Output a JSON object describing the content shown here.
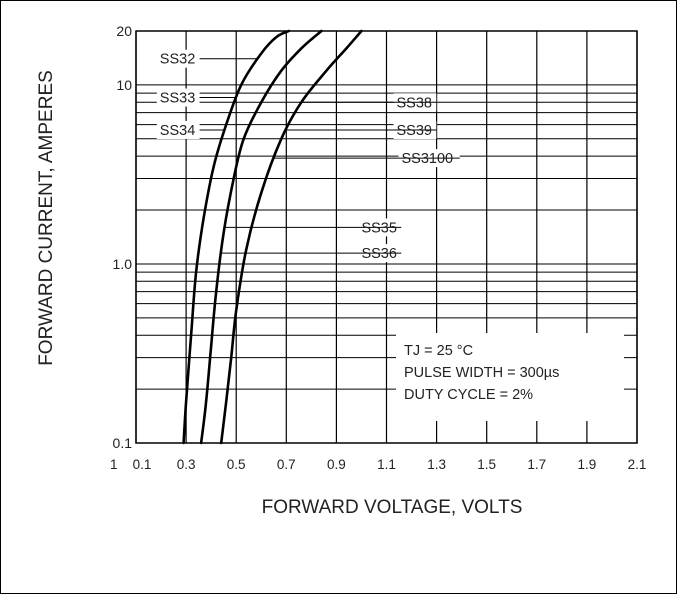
{
  "chart_data": {
    "type": "line",
    "xlabel": "FORWARD VOLTAGE, VOLTS",
    "ylabel": "FORWARD CURRENT, AMPERES",
    "x_scale": "linear",
    "y_scale": "log",
    "xlim": [
      0.1,
      2.1
    ],
    "ylim": [
      0.1,
      20
    ],
    "x_ticks": [
      {
        "value": 0.1,
        "label": "0.1"
      },
      {
        "value": 0.3,
        "label": "0.3"
      },
      {
        "value": 0.5,
        "label": "0.5"
      },
      {
        "value": 0.7,
        "label": "0.7"
      },
      {
        "value": 0.9,
        "label": "0.9"
      },
      {
        "value": 1.1,
        "label": "1.1"
      },
      {
        "value": 1.3,
        "label": "1.3"
      },
      {
        "value": 1.5,
        "label": "1.5"
      },
      {
        "value": 1.7,
        "label": "1.7"
      },
      {
        "value": 1.9,
        "label": "1.9"
      },
      {
        "value": 2.1,
        "label": "2.1"
      }
    ],
    "x_extra_label": "1",
    "y_ticks": [
      {
        "value": 0.1,
        "label": "0.1"
      },
      {
        "value": 1.0,
        "label": "1.0"
      },
      {
        "value": 10,
        "label": "10"
      },
      {
        "value": 20,
        "label": "20"
      }
    ],
    "grid": true,
    "series": [
      {
        "name": "SS32 / SS33 / SS34",
        "x": [
          0.29,
          0.3,
          0.32,
          0.34,
          0.37,
          0.41,
          0.46,
          0.52,
          0.6,
          0.66,
          0.71
        ],
        "y": [
          0.1,
          0.17,
          0.4,
          0.9,
          1.8,
          3.5,
          6,
          10,
          15,
          18.5,
          20
        ]
      },
      {
        "name": "SS35 / SS36",
        "x": [
          0.36,
          0.38,
          0.4,
          0.42,
          0.45,
          0.49,
          0.53,
          0.6,
          0.68,
          0.76,
          0.84
        ],
        "y": [
          0.1,
          0.17,
          0.35,
          0.7,
          1.5,
          3,
          5,
          8,
          12,
          16,
          20
        ]
      },
      {
        "name": "SS38 / SS39 / SS3100",
        "x": [
          0.44,
          0.46,
          0.48,
          0.5,
          0.54,
          0.6,
          0.68,
          0.76,
          0.86,
          0.94,
          1.0
        ],
        "y": [
          0.1,
          0.17,
          0.3,
          0.55,
          1.2,
          2.5,
          5,
          8,
          12,
          16,
          20
        ]
      }
    ],
    "series_labels": [
      {
        "text": "SS32",
        "curve": 0,
        "lx": 0.195,
        "ly": 14
      },
      {
        "text": "SS33",
        "curve": 0,
        "lx": 0.195,
        "ly": 8.5
      },
      {
        "text": "SS34",
        "curve": 0,
        "lx": 0.195,
        "ly": 5.6
      },
      {
        "text": "SS38",
        "curve": 2,
        "lx": 1.14,
        "ly": 8.0
      },
      {
        "text": "SS39",
        "curve": 2,
        "lx": 1.14,
        "ly": 5.6
      },
      {
        "text": "SS3100",
        "curve": 2,
        "lx": 1.16,
        "ly": 3.9
      },
      {
        "text": "SS35",
        "curve": 1,
        "lx": 1.0,
        "ly": 1.6
      },
      {
        "text": "SS36",
        "curve": 1,
        "lx": 1.0,
        "ly": 1.15
      }
    ],
    "annotation": {
      "lines": [
        "TJ = 25 °C",
        "PULSE WIDTH = 300µs",
        "DUTY CYCLE = 2%"
      ]
    }
  }
}
